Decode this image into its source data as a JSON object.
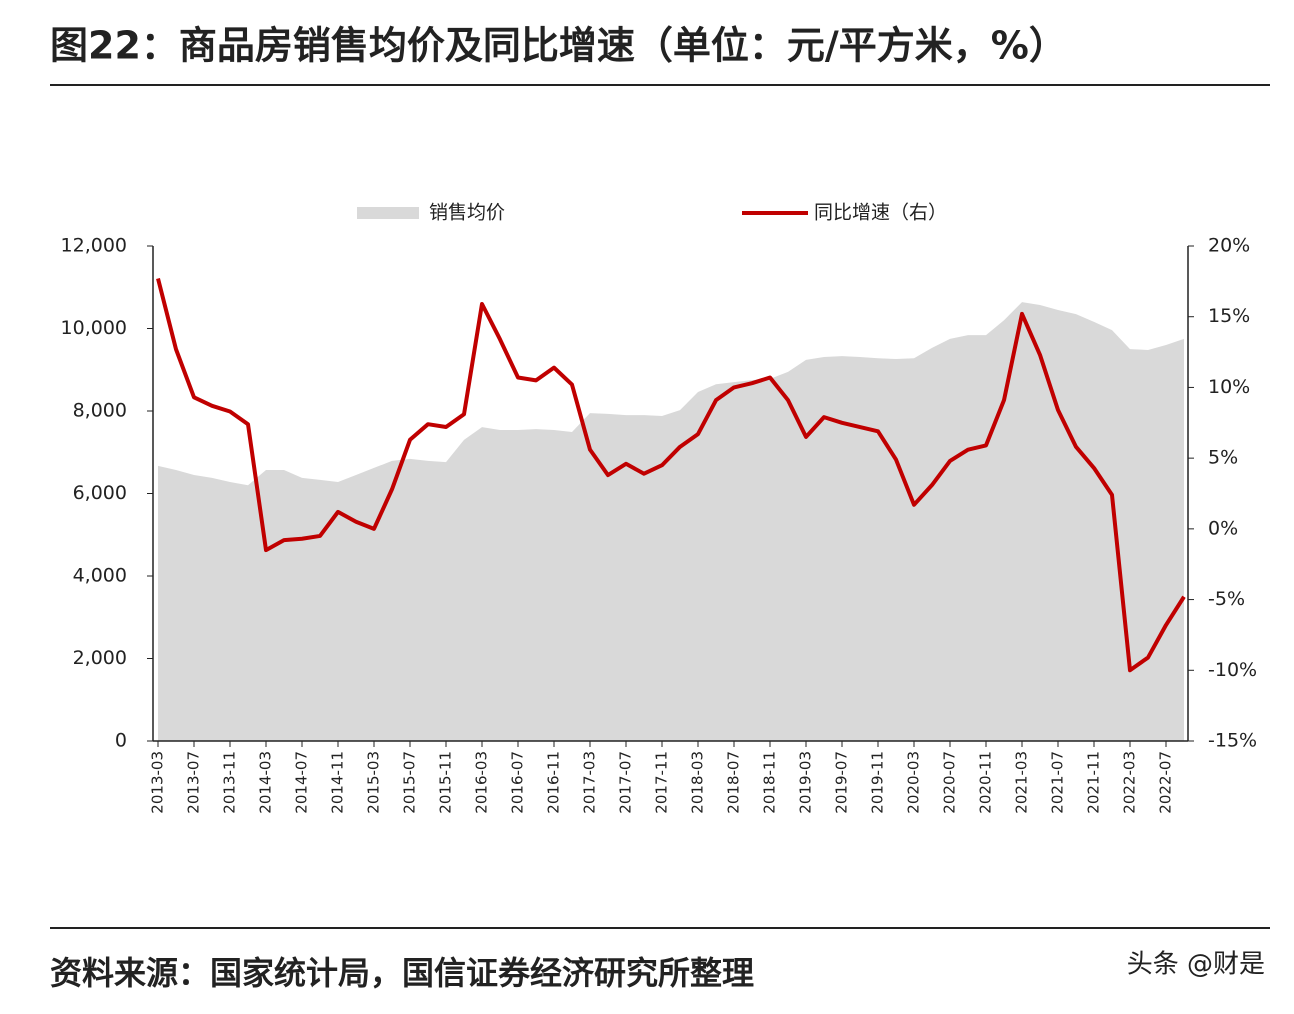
{
  "chart_data": {
    "type": "combo",
    "title": "图22：商品房销售均价及同比增速（单位：元/平方米，%）",
    "categories": [
      "2013-03",
      null,
      "2013-07",
      null,
      "2013-11",
      null,
      "2014-03",
      null,
      "2014-07",
      null,
      "2014-11",
      null,
      "2015-03",
      null,
      "2015-07",
      null,
      "2015-11",
      null,
      "2016-03",
      null,
      "2016-07",
      null,
      "2016-11",
      null,
      "2017-03",
      null,
      "2017-07",
      null,
      "2017-11",
      null,
      "2018-03",
      null,
      "2018-07",
      null,
      "2018-11",
      null,
      "2019-03",
      null,
      "2019-07",
      null,
      "2019-11",
      null,
      "2020-03",
      null,
      "2020-07",
      null,
      "2020-11",
      null,
      "2021-03",
      null,
      "2021-07",
      null,
      "2021-11",
      null,
      "2022-03",
      null,
      "2022-07",
      null
    ],
    "series": [
      {
        "name": "销售均价",
        "type": "area",
        "color": "#d9d9d9",
        "values": [
          6670,
          6570,
          6450,
          6380,
          6280,
          6200,
          6570,
          6570,
          6380,
          6330,
          6280,
          6450,
          6620,
          6790,
          6840,
          6790,
          6760,
          7300,
          7610,
          7540,
          7540,
          7560,
          7540,
          7490,
          7950,
          7930,
          7900,
          7900,
          7880,
          8020,
          8460,
          8650,
          8700,
          8750,
          8780,
          8950,
          9240,
          9310,
          9330,
          9310,
          9280,
          9260,
          9280,
          9530,
          9750,
          9840,
          9840,
          10200,
          10640,
          10570,
          10450,
          10350,
          10160,
          9960,
          9500,
          9480,
          9600,
          9750
        ]
      },
      {
        "name": "同比增速（右）",
        "type": "line",
        "axis": "y2",
        "color": "#c00000",
        "values": [
          17.7,
          12.7,
          9.3,
          8.7,
          8.3,
          7.4,
          -1.5,
          -0.8,
          -0.7,
          -0.5,
          1.2,
          0.5,
          0,
          2.8,
          6.3,
          7.4,
          7.2,
          8.1,
          15.9,
          13.4,
          10.7,
          10.5,
          11.4,
          10.2,
          5.6,
          3.8,
          4.6,
          3.9,
          4.5,
          5.8,
          6.7,
          9.1,
          10.0,
          10.3,
          10.7,
          9.1,
          6.5,
          7.9,
          7.5,
          7.2,
          6.9,
          4.9,
          1.7,
          3.1,
          4.8,
          5.6,
          5.9,
          9.1,
          15.2,
          12.3,
          8.4,
          5.8,
          4.3,
          2.4,
          -10.0,
          -9.1,
          -6.8,
          -4.8
        ]
      }
    ],
    "ylim": [
      0,
      12000
    ],
    "yticks": [
      0,
      {
        "value": 2000,
        "label": "2,000"
      },
      {
        "value": 4000,
        "label": "4,000"
      },
      {
        "value": 6000,
        "label": "6,000"
      },
      {
        "value": 8000,
        "label": "8,000"
      },
      {
        "value": 10000,
        "label": "10,000"
      },
      {
        "value": 12000,
        "label": "12,000"
      }
    ],
    "y2lim": [
      -15,
      20
    ],
    "y2ticks": [
      {
        "value": -15,
        "label": "-15%"
      },
      {
        "value": -10,
        "label": "-10%"
      },
      {
        "value": -5,
        "label": "-5%"
      },
      {
        "value": 0,
        "label": "0%"
      },
      {
        "value": 5,
        "label": "5%"
      },
      {
        "value": 10,
        "label": "10%"
      },
      {
        "value": 15,
        "label": "15%"
      },
      {
        "value": 20,
        "label": "20%"
      }
    ],
    "legend": "top"
  },
  "source": "资料来源：国家统计局，国信证券经济研究所整理",
  "watermark": "头条 @财是"
}
